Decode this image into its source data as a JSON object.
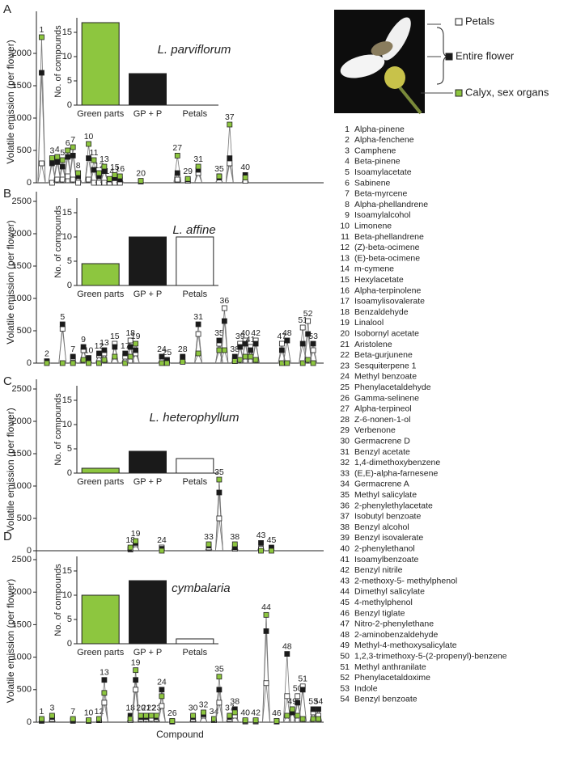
{
  "legend": {
    "items": [
      {
        "name": "Petals",
        "color": "#ffffff"
      },
      {
        "name": "Entire flower",
        "color": "#1a1a1a"
      },
      {
        "name": "Calyx, sex organs",
        "color": "#8dc63f"
      }
    ]
  },
  "compounds": [
    {
      "id": 1,
      "name": "Alpha-pinene"
    },
    {
      "id": 2,
      "name": "Alpha-fenchene"
    },
    {
      "id": 3,
      "name": "Camphene"
    },
    {
      "id": 4,
      "name": "Beta-pinene"
    },
    {
      "id": 5,
      "name": "Isoamylacetate"
    },
    {
      "id": 6,
      "name": "Sabinene"
    },
    {
      "id": 7,
      "name": "Beta-myrcene"
    },
    {
      "id": 8,
      "name": "Alpha-phellandrene"
    },
    {
      "id": 9,
      "name": "Isoamylalcohol"
    },
    {
      "id": 10,
      "name": "Limonene"
    },
    {
      "id": 11,
      "name": "Beta-phellandrene"
    },
    {
      "id": 12,
      "name": "(Z)-beta-ocimene"
    },
    {
      "id": 13,
      "name": "(E)-beta-ocimene"
    },
    {
      "id": 14,
      "name": "m-cymene"
    },
    {
      "id": 15,
      "name": "Hexylacetate"
    },
    {
      "id": 16,
      "name": "Alpha-terpinolene"
    },
    {
      "id": 17,
      "name": "Isoamylisovalerate"
    },
    {
      "id": 18,
      "name": "Benzaldehyde"
    },
    {
      "id": 19,
      "name": "Linalool"
    },
    {
      "id": 20,
      "name": "Isobornyl acetate"
    },
    {
      "id": 21,
      "name": "Aristolene"
    },
    {
      "id": 22,
      "name": "Beta-gurjunene"
    },
    {
      "id": 23,
      "name": "Sesquiterpene 1"
    },
    {
      "id": 24,
      "name": "Methyl benzoate"
    },
    {
      "id": 25,
      "name": "Phenylacetaldehyde"
    },
    {
      "id": 26,
      "name": "Gamma-selinene"
    },
    {
      "id": 27,
      "name": "Alpha-terpineol"
    },
    {
      "id": 28,
      "name": "Z-6-nonen-1-ol"
    },
    {
      "id": 29,
      "name": "Verbenone"
    },
    {
      "id": 30,
      "name": "Germacrene D"
    },
    {
      "id": 31,
      "name": "Benzyl acetate"
    },
    {
      "id": 32,
      "name": "1,4-dimethoxybenzene"
    },
    {
      "id": 33,
      "name": "(E,E)-alpha-farnesene"
    },
    {
      "id": 34,
      "name": "Germacrene A"
    },
    {
      "id": 35,
      "name": "Methyl salicylate"
    },
    {
      "id": 36,
      "name": "2-phenylethylacetate"
    },
    {
      "id": 37,
      "name": "Isobutyl benzoate"
    },
    {
      "id": 38,
      "name": "Benzyl alcohol"
    },
    {
      "id": 39,
      "name": "Benzyl isovalerate"
    },
    {
      "id": 40,
      "name": "2-phenylethanol"
    },
    {
      "id": 41,
      "name": "Isoamylbenzoate"
    },
    {
      "id": 42,
      "name": "Benzyl nitrile"
    },
    {
      "id": 43,
      "name": "2-methoxy-5- methylphenol"
    },
    {
      "id": 44,
      "name": "Dimethyl salicylate"
    },
    {
      "id": 45,
      "name": "4-methylphenol"
    },
    {
      "id": 46,
      "name": "Benzyl tiglate"
    },
    {
      "id": 47,
      "name": "Nitro-2-phenylethane"
    },
    {
      "id": 48,
      "name": "2-aminobenzaldehyde"
    },
    {
      "id": 49,
      "name": "Methyl-4-methoxysalicylate"
    },
    {
      "id": 50,
      "name": "1,2,3-trimethoxy-5-(2-propenyl)-benzene"
    },
    {
      "id": 51,
      "name": "Methyl anthranilate"
    },
    {
      "id": 52,
      "name": "Phenylacetaldoxime"
    },
    {
      "id": 53,
      "name": "Indole"
    },
    {
      "id": 54,
      "name": "Benzyl benzoate"
    }
  ],
  "chart_data": [
    {
      "type": "line",
      "label": "A",
      "title": "L. parviflorum",
      "ylabel": "Volatile emission (per flower)",
      "ylim": [
        0,
        2500
      ],
      "yticks": [
        0,
        500,
        1000,
        1500,
        2000
      ],
      "xlim": [
        0,
        55
      ],
      "x": [
        1,
        3,
        4,
        5,
        6,
        7,
        8,
        10,
        11,
        12,
        13,
        14,
        15,
        16,
        20,
        27,
        29,
        31,
        35,
        37,
        40
      ],
      "series": [
        {
          "values": [
            300,
            0,
            50,
            50,
            100,
            50,
            0,
            50,
            0,
            0,
            0,
            0,
            0,
            0,
            20,
            50,
            30,
            150,
            100,
            300,
            30
          ]
        },
        {
          "values": [
            1700,
            300,
            320,
            250,
            400,
            420,
            100,
            380,
            200,
            100,
            180,
            50,
            70,
            50,
            20,
            150,
            50,
            200,
            80,
            380,
            120
          ]
        },
        {
          "values": [
            2250,
            380,
            400,
            350,
            500,
            550,
            150,
            600,
            350,
            150,
            250,
            60,
            120,
            100,
            30,
            420,
            60,
            250,
            100,
            900,
            80
          ]
        }
      ],
      "inset": {
        "type": "bar",
        "ylabel": "No. of compounds",
        "categories": [
          "Green parts",
          "GP + P",
          "Petals"
        ],
        "values": [
          17,
          6.5,
          0
        ],
        "colors": [
          "#8dc63f",
          "#1a1a1a",
          "#ffffff"
        ],
        "ylim": [
          0,
          18
        ],
        "yticks": [
          0,
          5,
          10,
          15
        ]
      }
    },
    {
      "type": "line",
      "label": "B",
      "title": "L. affine",
      "ylabel": "Volatile emission (per flower)",
      "ylim": [
        0,
        2500
      ],
      "yticks": [
        0,
        500,
        1000,
        1500,
        2000,
        2500
      ],
      "xlim": [
        0,
        55
      ],
      "x": [
        2,
        5,
        7,
        9,
        10,
        12,
        13,
        15,
        17,
        18,
        19,
        24,
        25,
        28,
        31,
        35,
        36,
        38,
        39,
        40,
        41,
        42,
        47,
        48,
        51,
        52,
        53
      ],
      "series": [
        {
          "values": [
            20,
            530,
            80,
            200,
            60,
            120,
            150,
            300,
            100,
            350,
            150,
            100,
            50,
            80,
            450,
            300,
            850,
            50,
            300,
            350,
            250,
            350,
            300,
            350,
            550,
            650,
            200
          ]
        },
        {
          "values": [
            30,
            600,
            100,
            250,
            80,
            150,
            200,
            250,
            150,
            250,
            200,
            100,
            50,
            100,
            600,
            350,
            650,
            100,
            250,
            300,
            200,
            300,
            200,
            350,
            300,
            450,
            300
          ]
        },
        {
          "values": [
            0,
            0,
            0,
            50,
            0,
            0,
            50,
            100,
            0,
            100,
            300,
            0,
            0,
            20,
            150,
            200,
            200,
            30,
            50,
            100,
            100,
            50,
            0,
            0,
            0,
            50,
            0
          ]
        }
      ],
      "inset": {
        "type": "bar",
        "ylabel": "No. of compounds",
        "categories": [
          "Green parts",
          "GP + P",
          "Petals"
        ],
        "values": [
          4.5,
          10,
          10
        ],
        "colors": [
          "#8dc63f",
          "#1a1a1a",
          "#ffffff"
        ],
        "ylim": [
          0,
          18
        ],
        "yticks": [
          0,
          5,
          10,
          15
        ]
      }
    },
    {
      "type": "line",
      "label": "C",
      "title": "L. heterophyllum",
      "ylabel": "Volatile emission (per flower)",
      "ylim": [
        0,
        2500
      ],
      "yticks": [
        0,
        500,
        1000,
        1500,
        2000,
        2500
      ],
      "xlim": [
        0,
        55
      ],
      "x": [
        18,
        19,
        24,
        33,
        35,
        38,
        43,
        45
      ],
      "series": [
        {
          "values": [
            20,
            100,
            50,
            50,
            500,
            30,
            30,
            30
          ]
        },
        {
          "values": [
            30,
            120,
            30,
            80,
            900,
            50,
            120,
            50
          ]
        },
        {
          "values": [
            50,
            150,
            0,
            100,
            1100,
            100,
            0,
            0
          ]
        }
      ],
      "inset": {
        "type": "bar",
        "ylabel": "No. of compounds",
        "categories": [
          "Green parts",
          "GP + P",
          "Petals"
        ],
        "values": [
          1,
          4.5,
          3
        ],
        "colors": [
          "#8dc63f",
          "#1a1a1a",
          "#ffffff"
        ],
        "ylim": [
          0,
          18
        ],
        "yticks": [
          0,
          5,
          10,
          15
        ]
      }
    },
    {
      "type": "line",
      "label": "D",
      "title": "L. cymbalaria",
      "ylabel": "Volatile emission (per flower)",
      "xlabel": "Compound",
      "ylim": [
        0,
        2500
      ],
      "yticks": [
        0,
        500,
        1000,
        1500,
        2000,
        2500
      ],
      "xlim": [
        0,
        55
      ],
      "x": [
        1,
        3,
        7,
        10,
        12,
        13,
        18,
        19,
        20,
        21,
        22,
        23,
        24,
        26,
        30,
        32,
        34,
        35,
        37,
        38,
        40,
        42,
        44,
        46,
        48,
        49,
        50,
        51,
        53,
        54
      ],
      "series": [
        {
          "values": [
            20,
            50,
            20,
            20,
            30,
            300,
            30,
            500,
            50,
            50,
            50,
            50,
            250,
            10,
            50,
            100,
            30,
            300,
            50,
            100,
            10,
            10,
            600,
            10,
            400,
            150,
            400,
            550,
            150,
            100
          ]
        },
        {
          "values": [
            30,
            80,
            30,
            20,
            30,
            650,
            100,
            650,
            80,
            80,
            100,
            80,
            500,
            10,
            80,
            120,
            40,
            500,
            80,
            200,
            20,
            20,
            1400,
            10,
            1050,
            150,
            300,
            500,
            200,
            200
          ]
        },
        {
          "values": [
            50,
            100,
            50,
            30,
            50,
            450,
            50,
            800,
            100,
            100,
            100,
            100,
            400,
            20,
            100,
            150,
            50,
            700,
            100,
            150,
            30,
            30,
            1650,
            20,
            100,
            200,
            100,
            50,
            50,
            50
          ]
        }
      ],
      "inset": {
        "type": "bar",
        "ylabel": "No. of compounds",
        "categories": [
          "Green parts",
          "GP + P",
          "Petals"
        ],
        "values": [
          10,
          13,
          1
        ],
        "colors": [
          "#8dc63f",
          "#1a1a1a",
          "#ffffff"
        ],
        "ylim": [
          0,
          18
        ],
        "yticks": [
          0,
          5,
          10,
          15
        ]
      }
    }
  ]
}
